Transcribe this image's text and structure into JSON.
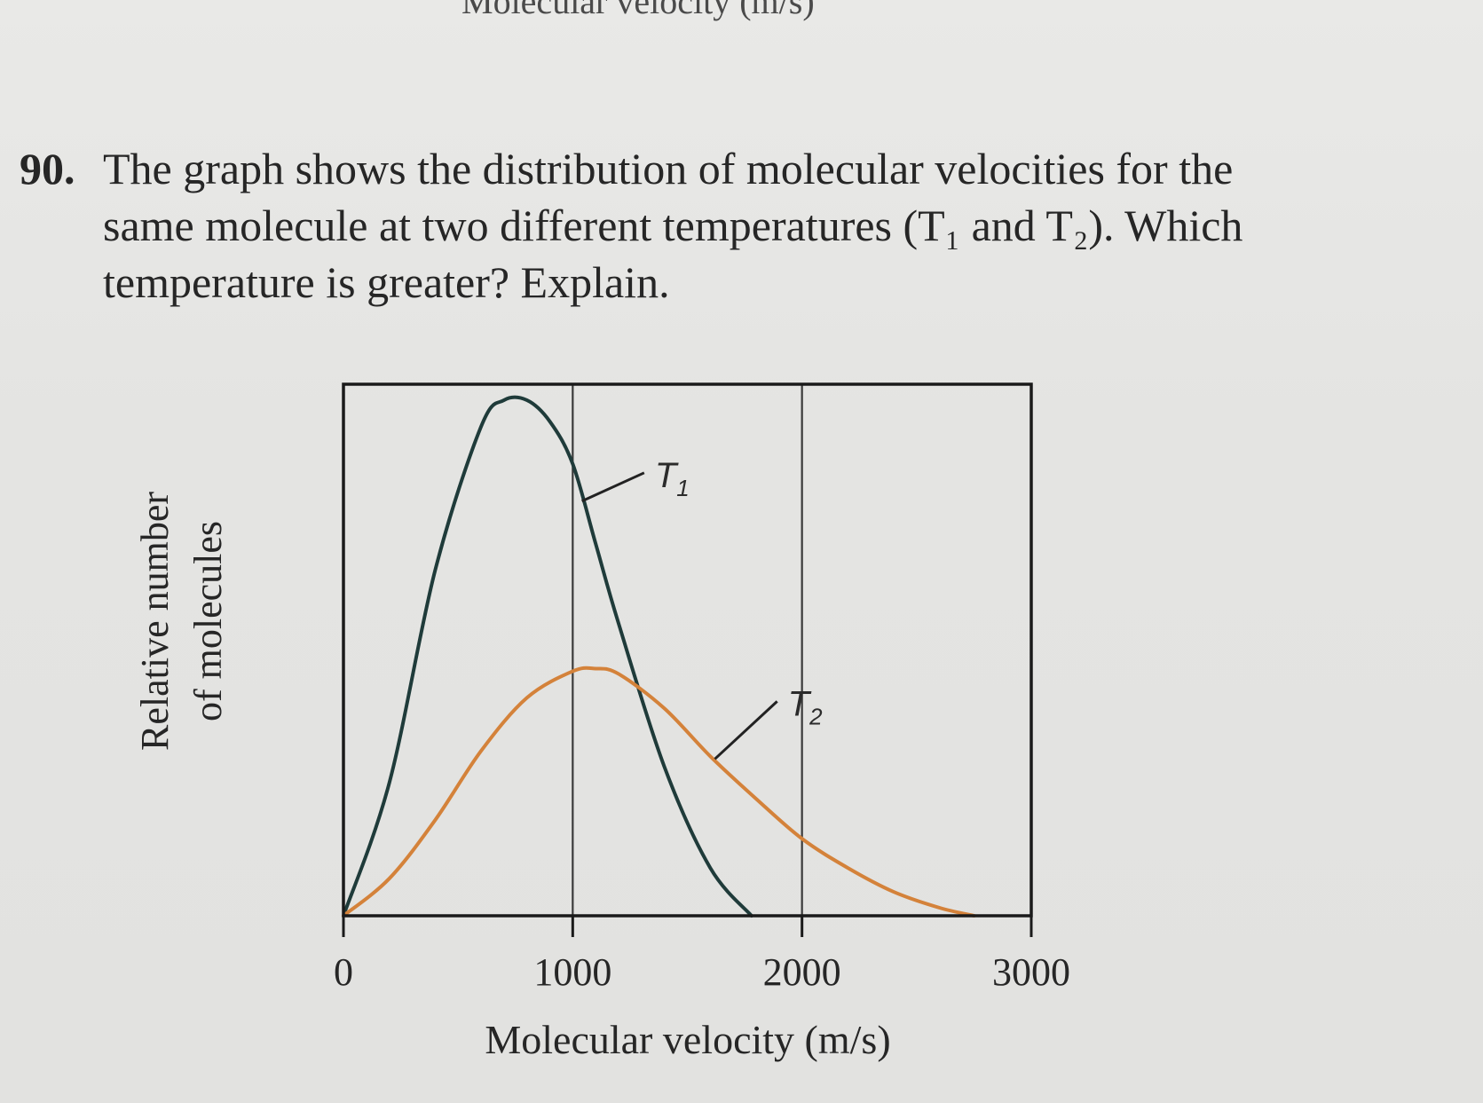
{
  "top_fragment": "Molecular velocity (m/s)",
  "question": {
    "number": "90.",
    "lines": [
      "The graph shows the distribution of molecular velocities for the",
      "same molecule at two different temperatures (T₁ and T₂). Which",
      "temperature is greater? Explain."
    ]
  },
  "colors": {
    "t1_curve": "#1f3b3a",
    "t2_curve": "#d4823a",
    "frame": "#1a1a1a",
    "gridline": "#3a3a3a"
  },
  "chart_data": {
    "type": "line",
    "xlabel": "Molecular velocity (m/s)",
    "ylabel_lines": [
      "Relative number",
      "of molecules"
    ],
    "xlim": [
      0,
      3000
    ],
    "ylim": [
      0,
      1.0
    ],
    "x_ticks": [
      "0",
      "1000",
      "2000",
      "3000"
    ],
    "x_tick_values": [
      0,
      1000,
      2000,
      3000
    ],
    "vertical_gridlines": [
      1000,
      2000
    ],
    "y_tick_labels": false,
    "series": [
      {
        "name": "T1",
        "label_main": "T",
        "label_sub": "1",
        "x": [
          0,
          200,
          400,
          600,
          700,
          800,
          900,
          1000,
          1100,
          1200,
          1400,
          1600,
          1780
        ],
        "y": [
          0,
          0.25,
          0.65,
          0.92,
          0.97,
          0.97,
          0.93,
          0.85,
          0.7,
          0.55,
          0.28,
          0.09,
          0.0
        ]
      },
      {
        "name": "T2",
        "label_main": "T",
        "label_sub": "2",
        "x": [
          0,
          200,
          400,
          600,
          800,
          1000,
          1100,
          1200,
          1400,
          1600,
          1800,
          2000,
          2200,
          2400,
          2600,
          2750
        ],
        "y": [
          0,
          0.07,
          0.18,
          0.31,
          0.41,
          0.46,
          0.465,
          0.455,
          0.39,
          0.3,
          0.22,
          0.145,
          0.09,
          0.045,
          0.015,
          0.0
        ]
      }
    ]
  }
}
